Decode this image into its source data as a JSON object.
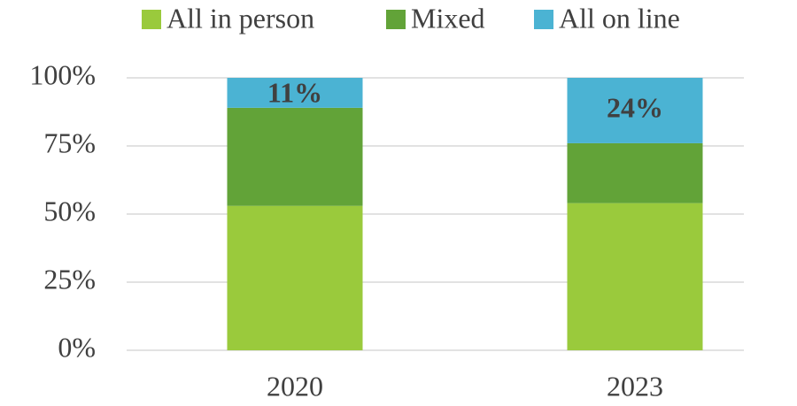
{
  "chart_data": {
    "type": "stacked_bar",
    "categories": [
      "2020",
      "2023"
    ],
    "series": [
      {
        "name": "All in person",
        "color": "#9aca3c",
        "values": [
          53,
          54
        ]
      },
      {
        "name": "Mixed",
        "color": "#62a338",
        "values": [
          36,
          22
        ]
      },
      {
        "name": "All on line",
        "color": "#4bb3d3",
        "values": [
          11,
          24
        ],
        "value_labels": [
          "11%",
          "24%"
        ]
      }
    ],
    "ylim": [
      0,
      100
    ],
    "yticks": [
      {
        "value": 0,
        "label": "0%"
      },
      {
        "value": 25,
        "label": "25%"
      },
      {
        "value": 50,
        "label": "50%"
      },
      {
        "value": 75,
        "label": "75%"
      },
      {
        "value": 100,
        "label": "100%"
      }
    ],
    "grid": true,
    "legend": "top"
  }
}
